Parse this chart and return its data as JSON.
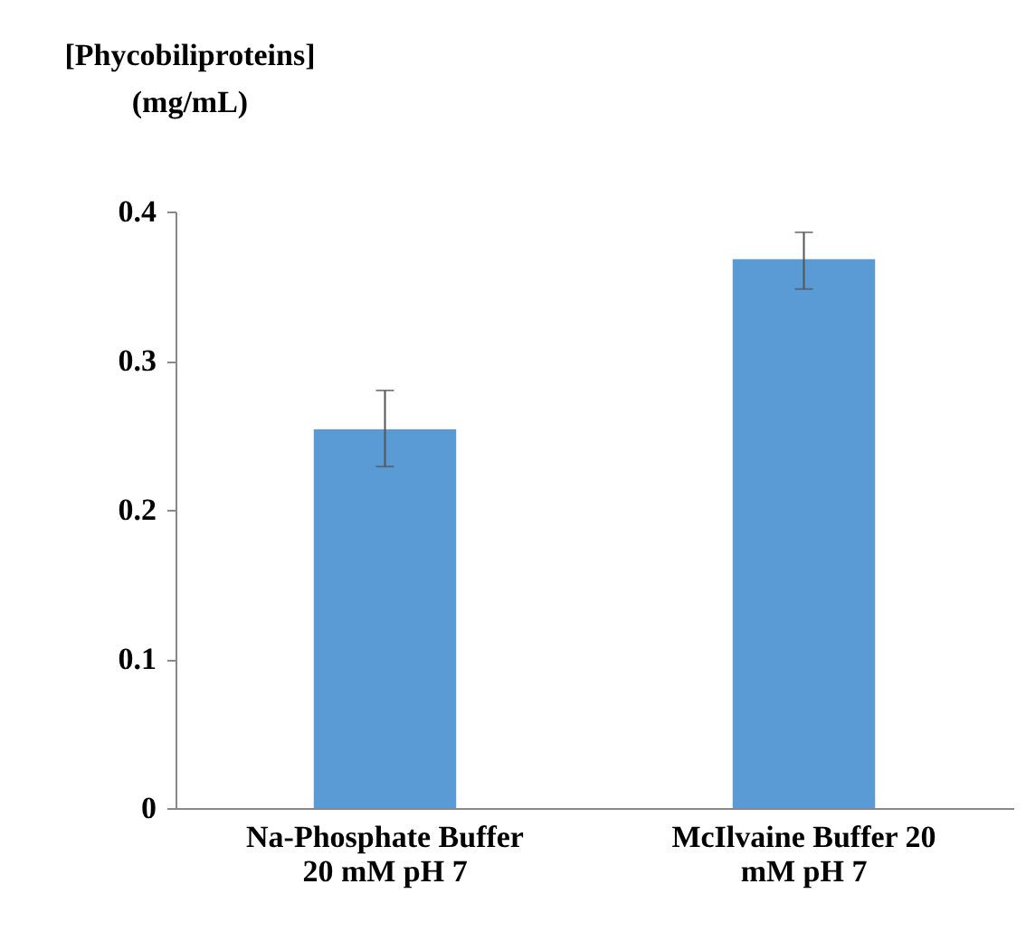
{
  "chart_data": {
    "type": "bar",
    "ylabel": "[Phycobiliproteins]\n(mg/mL)",
    "categories": [
      "Na-Phosphate Buffer 20 mM pH 7",
      "McIlvaine Buffer 20 mM pH 7"
    ],
    "values": [
      0.254,
      0.368
    ],
    "color": "#5b9bd5",
    "errors": [
      [
        0.229,
        0.28
      ],
      [
        0.348,
        0.386
      ]
    ],
    "ylim": [
      0,
      0.4
    ],
    "yticks": [
      0,
      0.1,
      0.2,
      0.3,
      0.4
    ],
    "grid": false
  }
}
